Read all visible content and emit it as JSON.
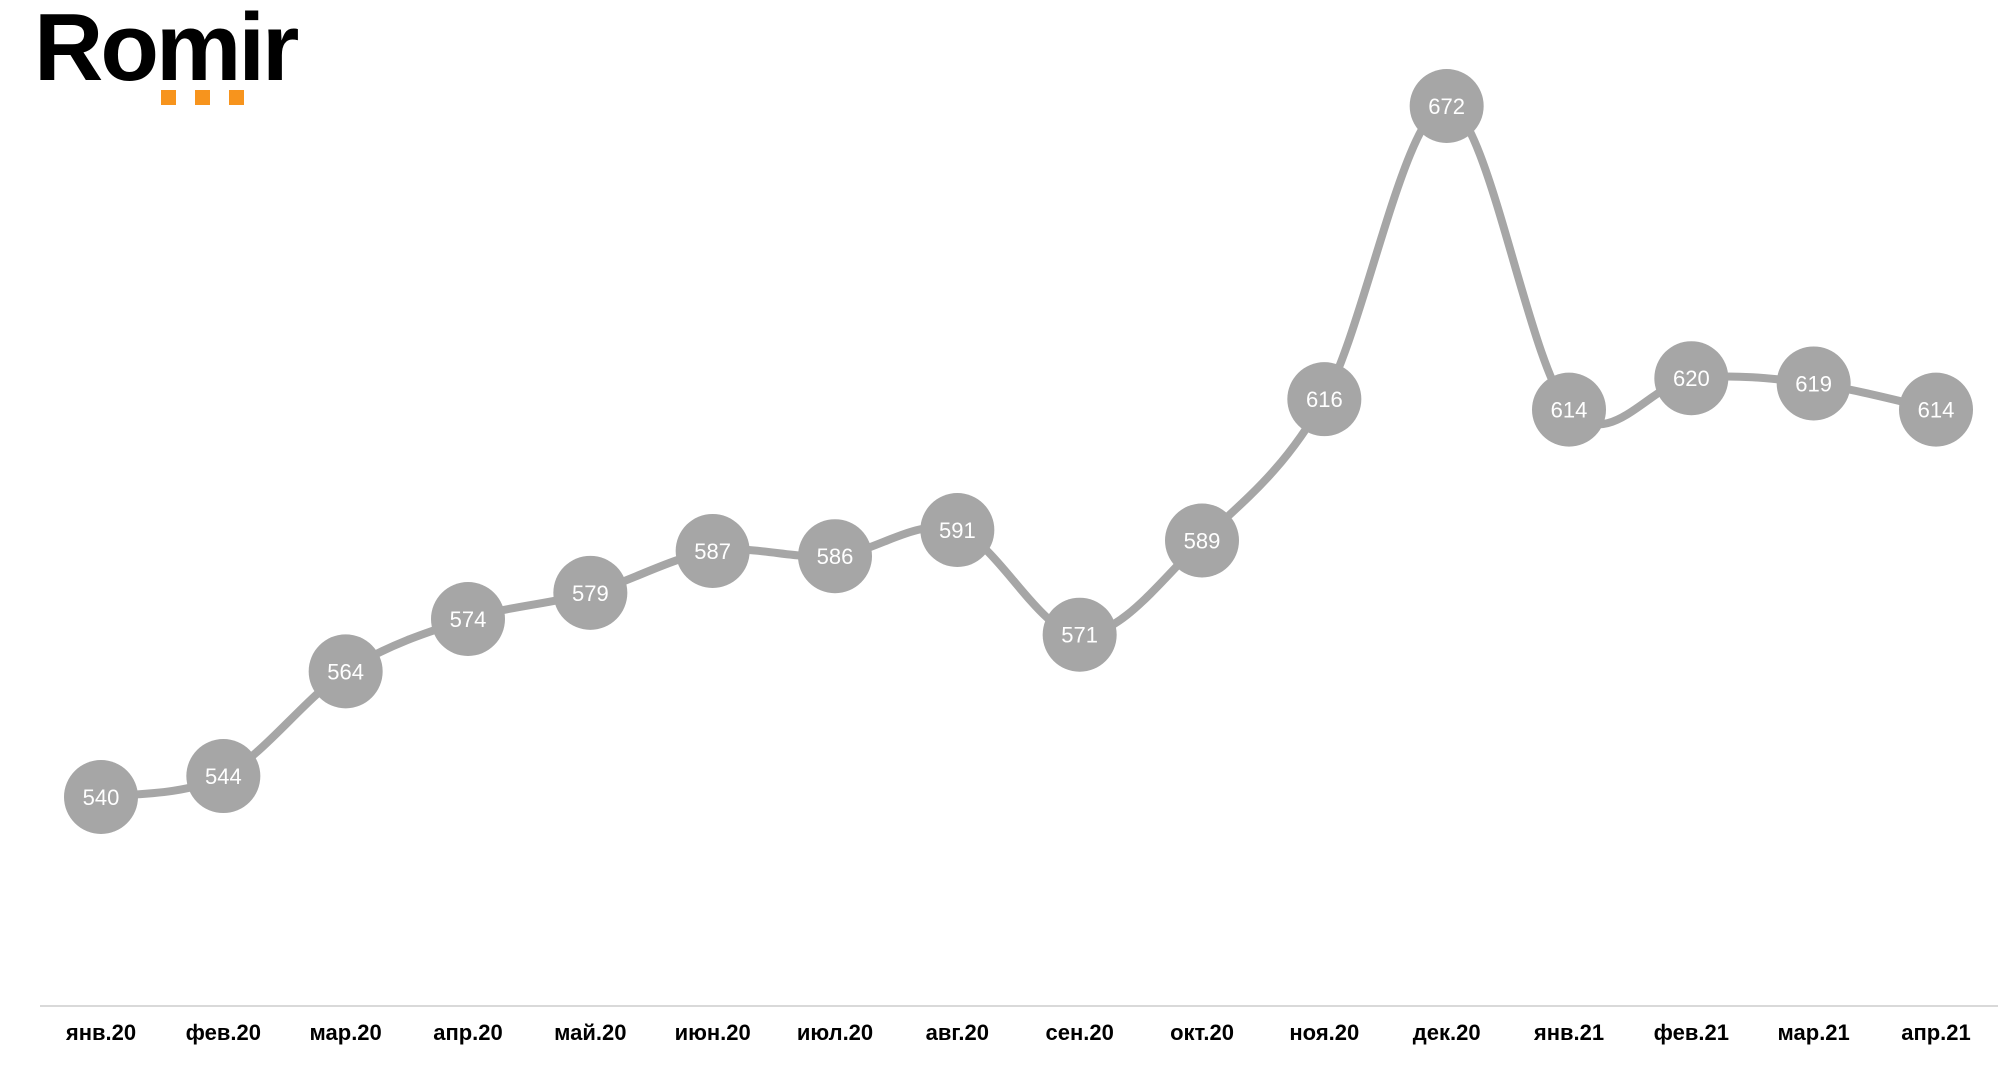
{
  "logo": "Romir",
  "chart_data": {
    "type": "line",
    "categories": [
      "янв.20",
      "фев.20",
      "мар.20",
      "апр.20",
      "май.20",
      "июн.20",
      "июл.20",
      "авг.20",
      "сен.20",
      "окт.20",
      "ноя.20",
      "дек.20",
      "янв.21",
      "фев.21",
      "мар.21",
      "апр.21"
    ],
    "values": [
      540,
      544,
      564,
      574,
      579,
      587,
      586,
      591,
      571,
      589,
      616,
      672,
      614,
      620,
      619,
      614
    ],
    "color": "#a6a6a6",
    "smooth": true
  }
}
